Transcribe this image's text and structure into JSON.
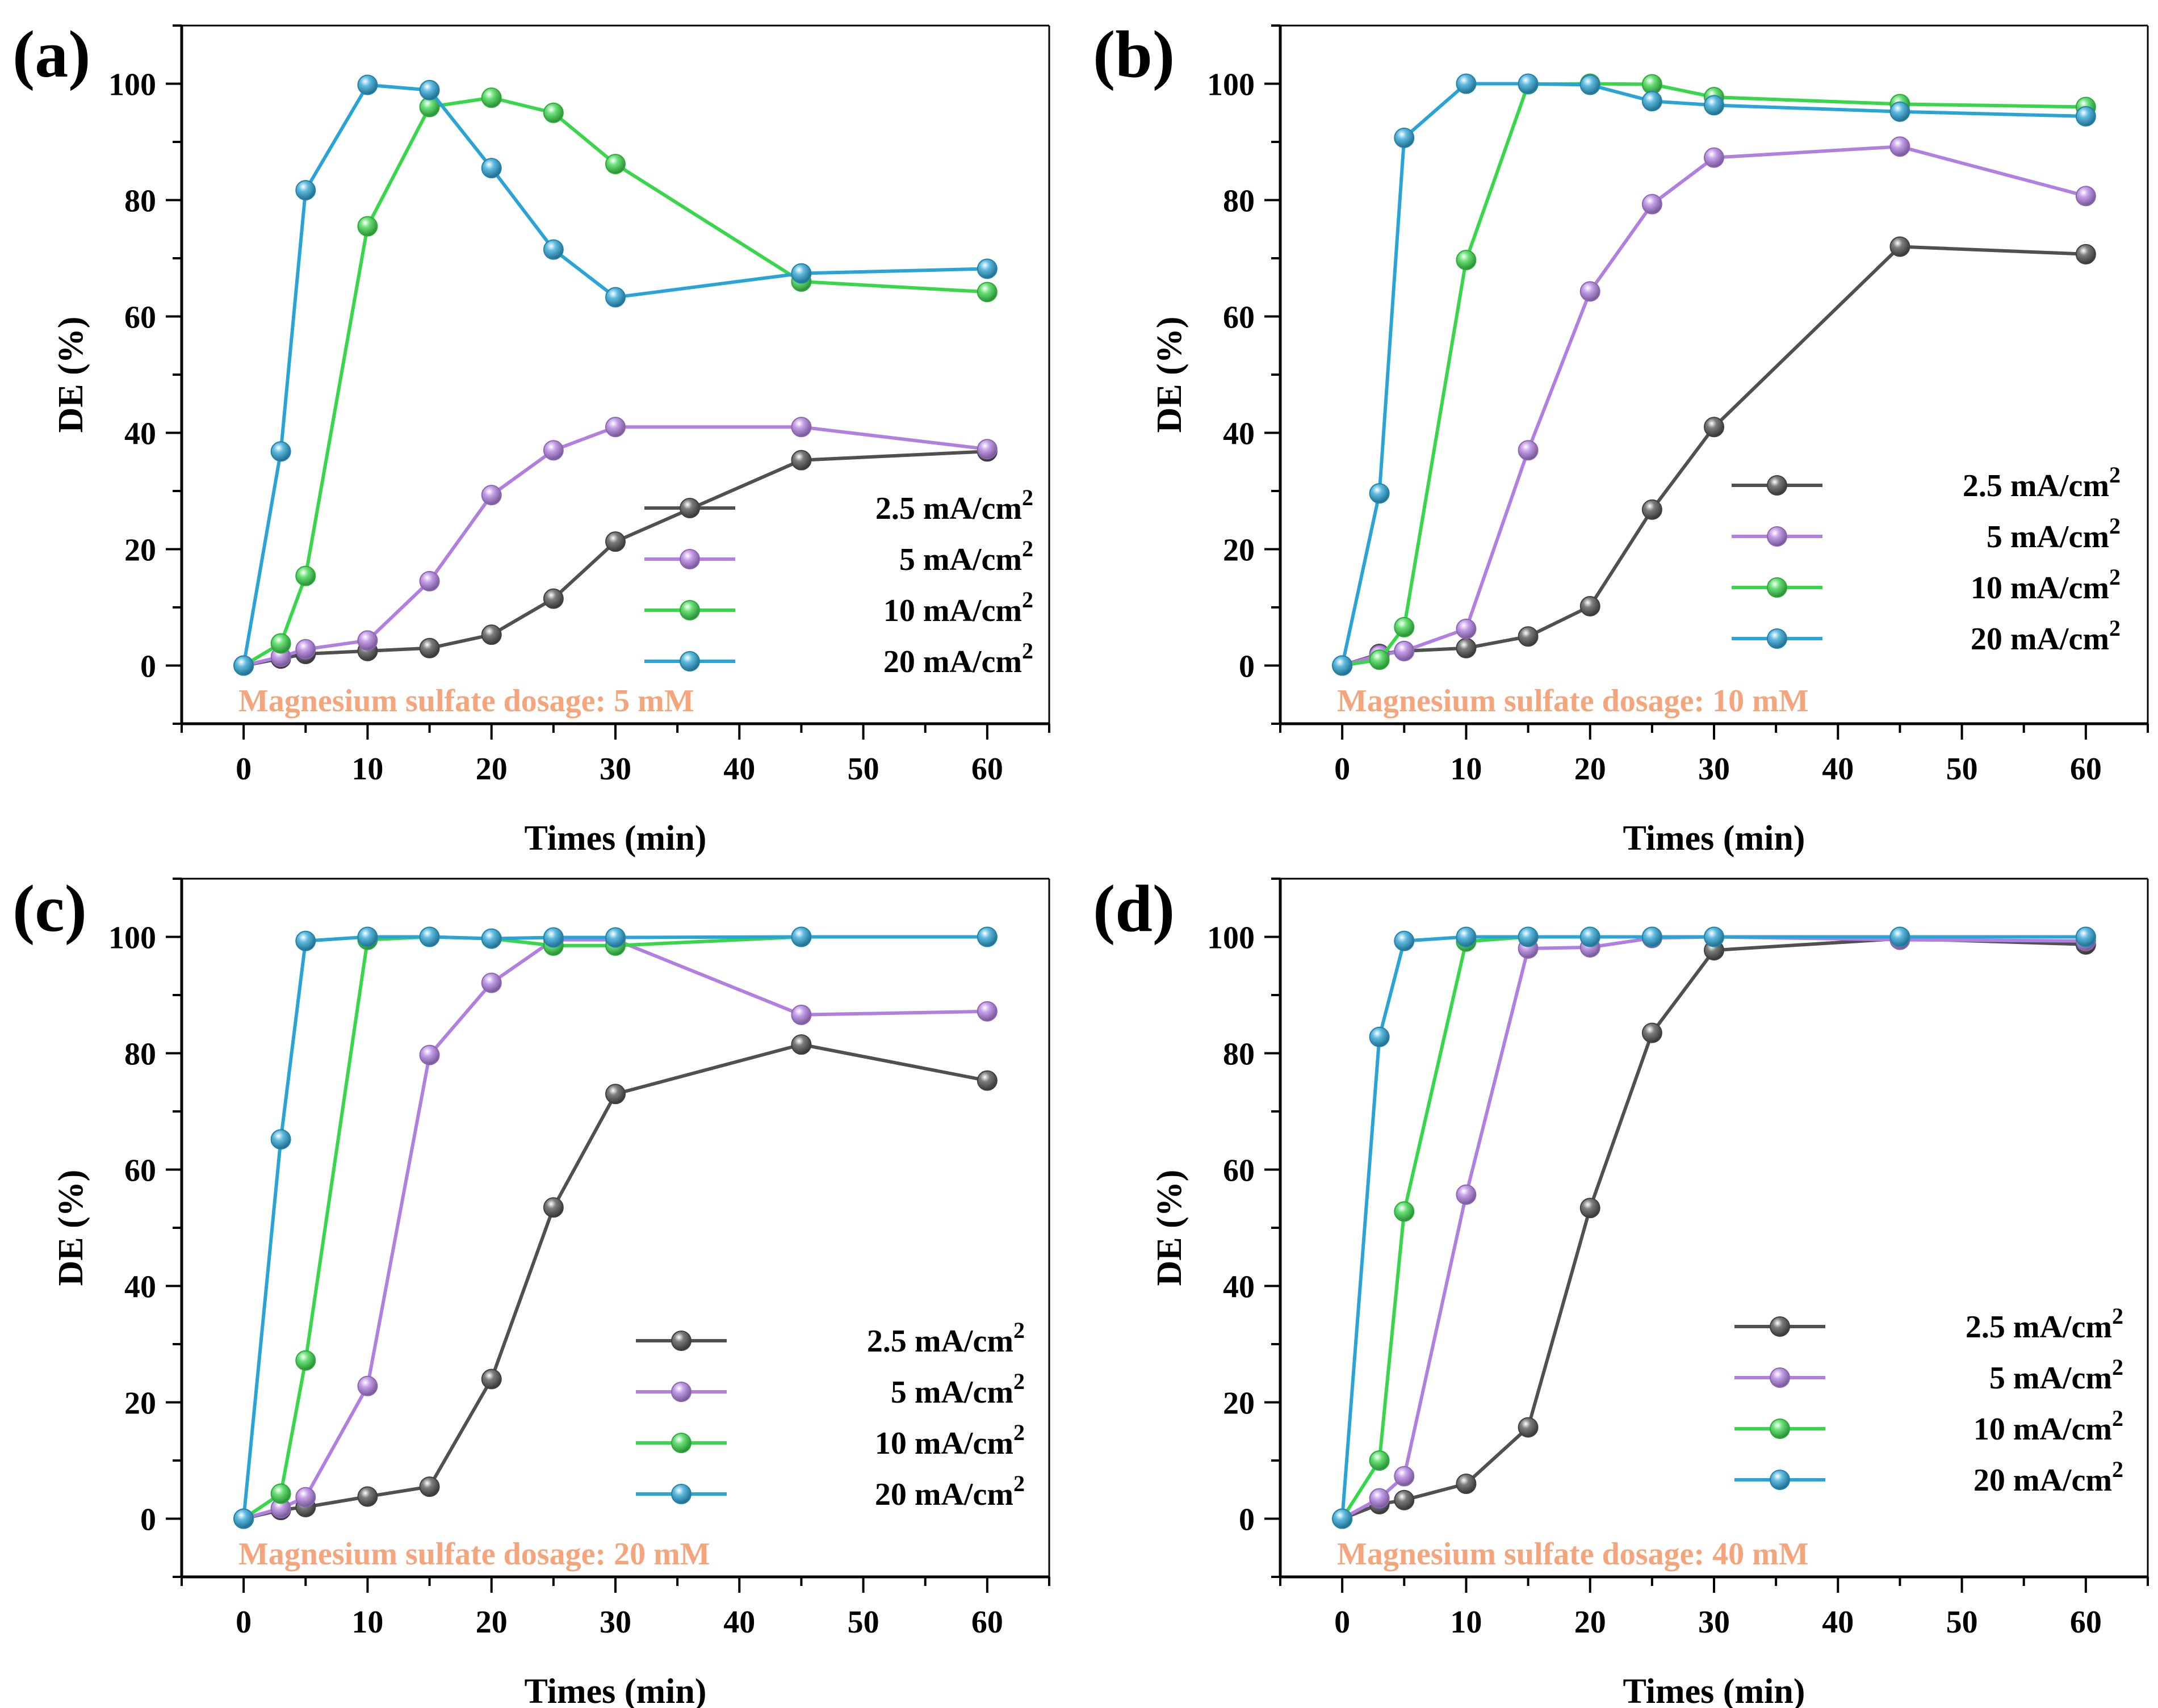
{
  "chart_data": [
    {
      "type": "line",
      "panel_label": "(a)",
      "xlabel": "Times (min)",
      "ylabel": "DE (%)",
      "xlim": [
        -5,
        65
      ],
      "ylim": [
        -10,
        110
      ],
      "xticks": [
        0,
        10,
        20,
        30,
        40,
        50,
        60
      ],
      "yticks": [
        0,
        20,
        40,
        60,
        80,
        100
      ],
      "annotation": "Magnesium sulfate dosage: 5 mM",
      "legend_position": "lower-right",
      "x": [
        0,
        3,
        5,
        10,
        15,
        20,
        25,
        30,
        45,
        60
      ],
      "series": [
        {
          "name": "2.5 mA/cm",
          "superscript": "2",
          "color": "#505050",
          "values": [
            0,
            1.2,
            2,
            2.5,
            3,
            5.3,
            11.5,
            21.3,
            35.3,
            36.8
          ]
        },
        {
          "name": "5 mA/cm",
          "superscript": "2",
          "color": "#b07fe0",
          "values": [
            0,
            1.5,
            2.8,
            4.3,
            14.5,
            29.3,
            37,
            41,
            41,
            37.2
          ]
        },
        {
          "name": "10 mA/cm",
          "superscript": "2",
          "color": "#38d64a",
          "values": [
            0,
            3.8,
            15.4,
            75.5,
            96,
            97.6,
            95,
            86.2,
            66,
            64.2
          ]
        },
        {
          "name": "20 mA/cm",
          "superscript": "2",
          "color": "#2aa4d6",
          "values": [
            0,
            36.8,
            81.7,
            99.8,
            98.9,
            85.5,
            71.5,
            63.3,
            67.4,
            68.2
          ]
        }
      ]
    },
    {
      "type": "line",
      "panel_label": "(b)",
      "xlabel": "Times (min)",
      "ylabel": "DE (%)",
      "xlim": [
        -5,
        65
      ],
      "ylim": [
        -10,
        110
      ],
      "xticks": [
        0,
        10,
        20,
        30,
        40,
        50,
        60
      ],
      "yticks": [
        0,
        20,
        40,
        60,
        80,
        100
      ],
      "annotation": "Magnesium sulfate dosage: 10 mM",
      "legend_position": "right",
      "x": [
        0,
        3,
        5,
        10,
        15,
        20,
        25,
        30,
        45,
        60
      ],
      "series": [
        {
          "name": "2.5 mA/cm",
          "superscript": "2",
          "color": "#505050",
          "values": [
            0,
            2,
            2.5,
            3,
            5,
            10.2,
            26.8,
            41,
            72,
            70.7
          ]
        },
        {
          "name": "5 mA/cm",
          "superscript": "2",
          "color": "#b07fe0",
          "values": [
            0,
            1.8,
            2.5,
            6.3,
            37,
            64.3,
            79.3,
            87.3,
            89.2,
            80.7
          ]
        },
        {
          "name": "10 mA/cm",
          "superscript": "2",
          "color": "#38d64a",
          "values": [
            0,
            1,
            6.6,
            69.7,
            99.9,
            100,
            99.9,
            97.7,
            96.5,
            96
          ]
        },
        {
          "name": "20 mA/cm",
          "superscript": "2",
          "color": "#2aa4d6",
          "values": [
            0,
            29.6,
            90.7,
            100,
            100,
            99.8,
            97,
            96.3,
            95.2,
            94.4
          ]
        }
      ]
    },
    {
      "type": "line",
      "panel_label": "(c)",
      "xlabel": "Times (min)",
      "ylabel": "DE (%)",
      "xlim": [
        -5,
        65
      ],
      "ylim": [
        -10,
        110
      ],
      "xticks": [
        0,
        10,
        20,
        30,
        40,
        50,
        60
      ],
      "yticks": [
        0,
        20,
        40,
        60,
        80,
        100
      ],
      "annotation": "Magnesium sulfate dosage: 20 mM",
      "legend_position": "lower-right",
      "x": [
        0,
        3,
        5,
        10,
        15,
        20,
        25,
        30,
        45,
        60
      ],
      "series": [
        {
          "name": "2.5 mA/cm",
          "superscript": "2",
          "color": "#505050",
          "values": [
            0,
            1.5,
            2,
            3.8,
            5.5,
            24,
            53.5,
            73,
            81.5,
            75.3
          ]
        },
        {
          "name": "5 mA/cm",
          "superscript": "2",
          "color": "#b07fe0",
          "values": [
            0,
            1.8,
            3.7,
            22.8,
            79.7,
            92.1,
            99.5,
            99.5,
            86.6,
            87.2
          ]
        },
        {
          "name": "10 mA/cm",
          "superscript": "2",
          "color": "#38d64a",
          "values": [
            0,
            4.3,
            27.2,
            99.5,
            100,
            99.7,
            98.5,
            98.5,
            100,
            100
          ]
        },
        {
          "name": "20 mA/cm",
          "superscript": "2",
          "color": "#2aa4d6",
          "values": [
            0,
            65.2,
            99.3,
            100,
            100,
            99.7,
            99.9,
            99.9,
            100,
            100
          ]
        }
      ]
    },
    {
      "type": "line",
      "panel_label": "(d)",
      "xlabel": "Times (min)",
      "ylabel": "DE (%)",
      "xlim": [
        -5,
        65
      ],
      "ylim": [
        -10,
        110
      ],
      "xticks": [
        0,
        10,
        20,
        30,
        40,
        50,
        60
      ],
      "yticks": [
        0,
        20,
        40,
        60,
        80,
        100
      ],
      "annotation": "Magnesium sulfate dosage: 40 mM",
      "legend_position": "lower-right",
      "x": [
        0,
        3,
        5,
        10,
        15,
        20,
        25,
        30,
        45,
        60
      ],
      "series": [
        {
          "name": "2.5 mA/cm",
          "superscript": "2",
          "color": "#505050",
          "values": [
            0,
            2.5,
            3.2,
            6,
            15.7,
            53.4,
            83.5,
            97.7,
            99.7,
            98.7
          ]
        },
        {
          "name": "5 mA/cm",
          "superscript": "2",
          "color": "#b07fe0",
          "values": [
            0,
            3.5,
            7.3,
            55.7,
            98,
            98.2,
            99.8,
            100,
            99.5,
            99.3
          ]
        },
        {
          "name": "10 mA/cm",
          "superscript": "2",
          "color": "#38d64a",
          "values": [
            0,
            10,
            52.8,
            99.2,
            100,
            100,
            100,
            100,
            100,
            100
          ]
        },
        {
          "name": "20 mA/cm",
          "superscript": "2",
          "color": "#2aa4d6",
          "values": [
            0,
            82.8,
            99.3,
            100,
            100,
            100,
            100,
            100,
            100,
            100
          ]
        }
      ]
    }
  ]
}
